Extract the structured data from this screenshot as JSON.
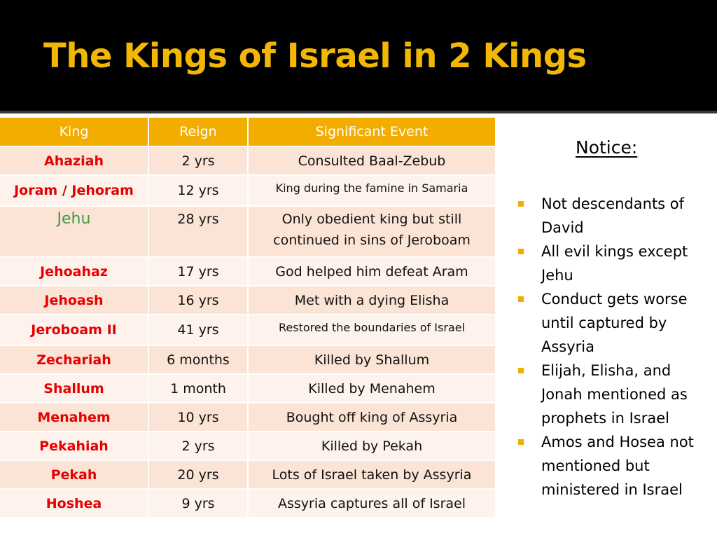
{
  "slide": {
    "title": "The Kings of Israel in 2 Kings"
  },
  "table": {
    "headers": [
      "King",
      "Reign",
      "Significant Event"
    ],
    "rows": [
      {
        "king": "Ahaziah",
        "reign": "2 yrs",
        "event": "Consulted Baal-Zebub"
      },
      {
        "king": "Joram / Jehoram",
        "reign": "12 yrs",
        "event": "King during the famine in Samaria"
      },
      {
        "king": "Jehu",
        "reign": "28 yrs",
        "event": "Only obedient king but still continued in sins of Jeroboam"
      },
      {
        "king": "Jehoahaz",
        "reign": "17 yrs",
        "event": "God helped him defeat Aram"
      },
      {
        "king": "Jehoash",
        "reign": "16 yrs",
        "event": "Met with a dying Elisha"
      },
      {
        "king": "Jeroboam II",
        "reign": "41 yrs",
        "event": "Restored the boundaries of Israel"
      },
      {
        "king": "Zechariah",
        "reign": "6 months",
        "event": "Killed by Shallum"
      },
      {
        "king": "Shallum",
        "reign": "1 month",
        "event": "Killed by Menahem"
      },
      {
        "king": "Menahem",
        "reign": "10 yrs",
        "event": "Bought off king of Assyria"
      },
      {
        "king": "Pekahiah",
        "reign": "2 yrs",
        "event": "Killed by Pekah"
      },
      {
        "king": "Pekah",
        "reign": "20 yrs",
        "event": "Lots of Israel taken by Assyria"
      },
      {
        "king": "Hoshea",
        "reign": "9 yrs",
        "event": "Assyria captures all of Israel"
      }
    ]
  },
  "notice": {
    "heading": "Notice:",
    "items": [
      "Not descendants of David",
      "All evil kings except Jehu",
      "Conduct gets worse until captured by Assyria",
      "Elijah, Elisha, and Jonah mentioned as prophets in Israel",
      "Amos and Hosea not mentioned but ministered in Israel"
    ]
  },
  "colors": {
    "title": "#f2b705",
    "header_fill": "#f2ad00",
    "evil_king": "#e60000",
    "good_king": "#3f9a3f",
    "row_odd": "#fbe3d6",
    "row_even": "#fdf2ec"
  }
}
